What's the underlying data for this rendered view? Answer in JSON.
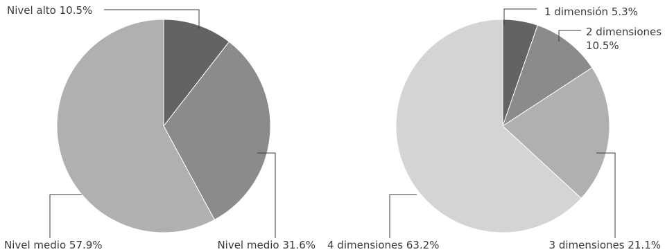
{
  "chart_data": [
    {
      "type": "pie",
      "slices": [
        {
          "label": "Nivel alto 10.5%",
          "value": 10.5,
          "color": "#636363"
        },
        {
          "label": "Nivel medio 31.6%",
          "value": 31.6,
          "color": "#8b8b8b"
        },
        {
          "label": "Nivel medio 57.9%",
          "value": 57.9,
          "color": "#b0b0b0"
        }
      ]
    },
    {
      "type": "pie",
      "slices": [
        {
          "label": "1 dimensión 5.3%",
          "value": 5.3,
          "color": "#636363"
        },
        {
          "label": "2 dimensiones\n10.5%",
          "value": 10.5,
          "color": "#8b8b8b"
        },
        {
          "label": "3 dimensiones 21.1%",
          "value": 21.1,
          "color": "#b0b0b0"
        },
        {
          "label": "4 dimensiones 63.2%",
          "value": 63.2,
          "color": "#d4d4d4"
        }
      ]
    }
  ]
}
